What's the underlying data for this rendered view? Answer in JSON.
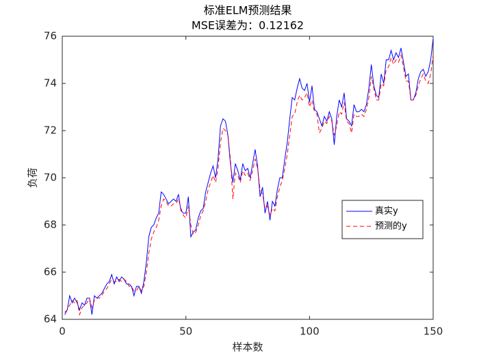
{
  "chart_data": {
    "type": "line",
    "title": [
      "标准ELM预测结果",
      "MSE误差为：0.12162"
    ],
    "xlabel": "样本数",
    "ylabel": "负荷",
    "x": [
      1,
      2,
      3,
      4,
      5,
      6,
      7,
      8,
      9,
      10,
      11,
      12,
      13,
      14,
      15,
      16,
      17,
      18,
      19,
      20,
      21,
      22,
      23,
      24,
      25,
      26,
      27,
      28,
      29,
      30,
      31,
      32,
      33,
      34,
      35,
      36,
      37,
      38,
      39,
      40,
      41,
      42,
      43,
      44,
      45,
      46,
      47,
      48,
      49,
      50,
      51,
      52,
      53,
      54,
      55,
      56,
      57,
      58,
      59,
      60,
      61,
      62,
      63,
      64,
      65,
      66,
      67,
      68,
      69,
      70,
      71,
      72,
      73,
      74,
      75,
      76,
      77,
      78,
      79,
      80,
      81,
      82,
      83,
      84,
      85,
      86,
      87,
      88,
      89,
      90,
      91,
      92,
      93,
      94,
      95,
      96,
      97,
      98,
      99,
      100,
      101,
      102,
      103,
      104,
      105,
      106,
      107,
      108,
      109,
      110,
      111,
      112,
      113,
      114,
      115,
      116,
      117,
      118,
      119,
      120,
      121,
      122,
      123,
      124,
      125,
      126,
      127,
      128,
      129,
      130,
      131,
      132,
      133,
      134,
      135,
      136,
      137,
      138,
      139,
      140,
      141,
      142,
      143,
      144,
      145,
      146,
      147,
      148,
      149,
      150
    ],
    "series": [
      {
        "name": "真实y",
        "color": "#0000ff",
        "dash": "solid",
        "values": [
          64.2,
          64.4,
          65.0,
          64.7,
          64.9,
          64.7,
          64.4,
          64.7,
          64.6,
          64.9,
          64.9,
          64.2,
          65.0,
          64.9,
          65.0,
          65.1,
          65.3,
          65.5,
          65.6,
          65.9,
          65.5,
          65.8,
          65.6,
          65.8,
          65.7,
          65.5,
          65.5,
          65.4,
          65.0,
          65.4,
          65.4,
          65.1,
          65.6,
          66.4,
          67.5,
          67.9,
          68.0,
          68.3,
          68.5,
          69.4,
          69.3,
          69.1,
          68.9,
          69.0,
          69.1,
          69.0,
          69.3,
          68.6,
          68.5,
          68.5,
          69.2,
          67.5,
          67.7,
          67.8,
          68.3,
          68.6,
          68.7,
          69.4,
          69.8,
          70.2,
          70.5,
          70.0,
          70.8,
          72.2,
          72.5,
          72.4,
          71.8,
          70.6,
          69.8,
          70.6,
          70.3,
          69.9,
          70.6,
          70.3,
          70.4,
          70.0,
          70.6,
          71.2,
          70.5,
          69.2,
          69.6,
          68.5,
          69.0,
          68.2,
          69.0,
          68.8,
          69.5,
          70.0,
          70.0,
          70.8,
          71.5,
          72.5,
          73.4,
          73.3,
          73.8,
          74.2,
          73.8,
          73.7,
          74.0,
          73.2,
          73.9,
          72.9,
          72.8,
          72.5,
          72.2,
          72.6,
          72.4,
          72.8,
          72.5,
          71.4,
          72.6,
          73.3,
          73.0,
          73.6,
          72.5,
          72.4,
          72.2,
          73.1,
          72.8,
          72.8,
          72.9,
          72.8,
          73.1,
          73.8,
          74.8,
          73.9,
          73.5,
          73.4,
          74.4,
          74.0,
          75.0,
          75.0,
          75.4,
          75.0,
          75.3,
          75.1,
          75.5,
          74.9,
          74.3,
          74.4,
          73.3,
          73.3,
          73.6,
          74.2,
          74.5,
          74.6,
          74.3,
          74.5,
          75.0,
          75.9
        ]
      },
      {
        "name": "预测的y",
        "color": "#ff0000",
        "dash": "dashed",
        "values": [
          64.3,
          64.4,
          64.6,
          64.8,
          64.7,
          64.8,
          64.2,
          64.5,
          64.6,
          64.7,
          64.9,
          64.5,
          64.8,
          64.9,
          64.9,
          65.0,
          65.2,
          65.3,
          65.5,
          65.7,
          65.6,
          65.6,
          65.7,
          65.6,
          65.7,
          65.6,
          65.4,
          65.4,
          65.2,
          65.2,
          65.4,
          65.2,
          65.4,
          66.0,
          66.8,
          67.4,
          67.7,
          67.9,
          68.2,
          68.8,
          69.1,
          69.0,
          68.8,
          68.8,
          68.9,
          68.9,
          69.1,
          68.7,
          68.4,
          68.3,
          68.8,
          68.0,
          67.6,
          67.7,
          68.0,
          68.4,
          68.6,
          69.0,
          69.5,
          69.8,
          70.1,
          69.8,
          70.4,
          71.5,
          72.1,
          72.0,
          71.8,
          70.8,
          69.1,
          70.2,
          70.1,
          69.8,
          70.3,
          70.1,
          70.2,
          69.9,
          70.3,
          70.8,
          70.4,
          69.5,
          69.3,
          68.7,
          68.8,
          68.4,
          68.7,
          68.6,
          69.2,
          69.6,
          69.9,
          70.4,
          71.0,
          71.8,
          72.6,
          72.7,
          73.2,
          73.5,
          73.3,
          73.4,
          73.6,
          73.0,
          73.3,
          72.8,
          72.7,
          71.9,
          72.1,
          72.4,
          72.3,
          72.6,
          72.4,
          71.8,
          72.2,
          72.8,
          72.7,
          73.2,
          72.4,
          72.3,
          71.9,
          72.7,
          72.6,
          72.6,
          72.7,
          72.6,
          72.9,
          73.4,
          74.3,
          73.8,
          73.3,
          73.3,
          74.0,
          73.9,
          74.6,
          74.7,
          75.1,
          74.8,
          75.0,
          74.9,
          75.2,
          74.7,
          74.1,
          74.1,
          73.3,
          73.3,
          73.5,
          73.9,
          74.2,
          74.4,
          74.1,
          74.0,
          74.4,
          75.2
        ]
      }
    ],
    "xlim": [
      0,
      150
    ],
    "xticks": [
      0,
      50,
      100,
      150
    ],
    "ylim": [
      64,
      76
    ],
    "yticks": [
      64,
      66,
      68,
      70,
      72,
      74,
      76
    ],
    "grid": false,
    "legend": "east"
  }
}
